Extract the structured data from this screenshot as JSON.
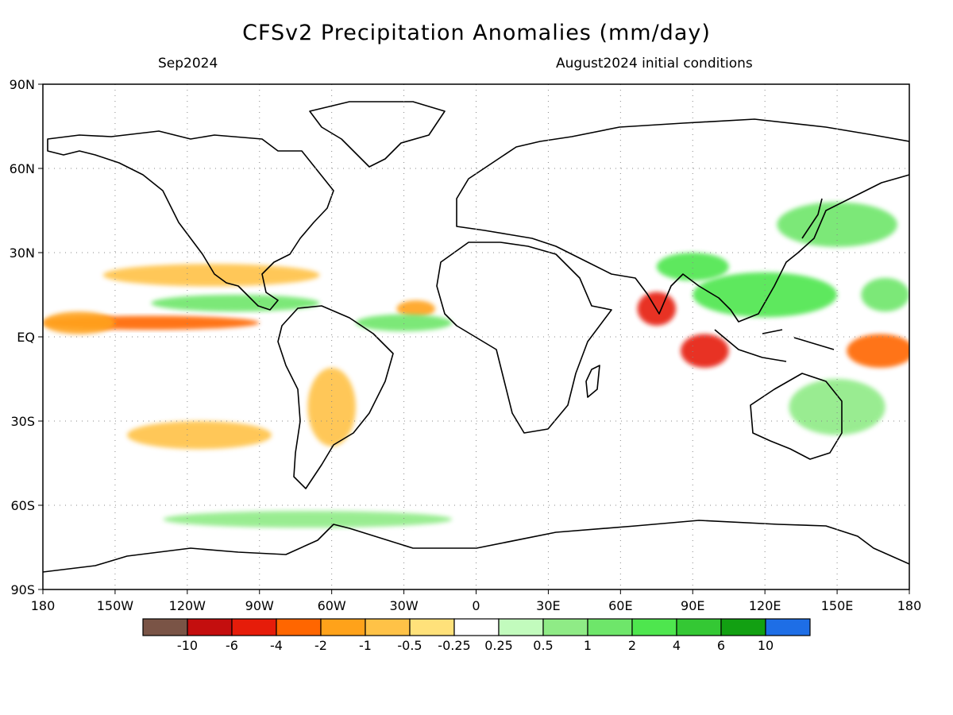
{
  "title": "CFSv2 Precipitation Anomalies (mm/day)",
  "subtitle_left": "Sep2024",
  "subtitle_right": "August2024 initial conditions",
  "map": {
    "lon_ticks": [
      "180",
      "150W",
      "120W",
      "90W",
      "60W",
      "30W",
      "0",
      "30E",
      "60E",
      "90E",
      "120E",
      "150E",
      "180"
    ],
    "lat_ticks": [
      "90N",
      "60N",
      "30N",
      "EQ",
      "30S",
      "60S",
      "90S"
    ],
    "lon_values": [
      -180,
      -150,
      -120,
      -90,
      -60,
      -30,
      0,
      30,
      60,
      90,
      120,
      150,
      180
    ],
    "lat_values": [
      90,
      60,
      30,
      0,
      -30,
      -60,
      -90
    ],
    "grid": "dotted",
    "extent": {
      "lon": [
        -180,
        180
      ],
      "lat": [
        -90,
        90
      ]
    },
    "anomaly_regions": [
      {
        "lon": -135,
        "lat": 5,
        "rx": 45,
        "ry": 2.5,
        "level": -3
      },
      {
        "lon": -165,
        "lat": 5,
        "rx": 15,
        "ry": 4,
        "level": -2
      },
      {
        "lon": 75,
        "lat": 10,
        "rx": 8,
        "ry": 6,
        "level": -4
      },
      {
        "lon": 95,
        "lat": -5,
        "rx": 10,
        "ry": 6,
        "level": -4
      },
      {
        "lon": 168,
        "lat": -5,
        "rx": 14,
        "ry": 6,
        "level": -3
      },
      {
        "lon": -110,
        "lat": 22,
        "rx": 45,
        "ry": 4,
        "level": -1
      },
      {
        "lon": -115,
        "lat": -35,
        "rx": 30,
        "ry": 5,
        "level": -1
      },
      {
        "lon": -60,
        "lat": -25,
        "rx": 10,
        "ry": 14,
        "level": -1
      },
      {
        "lon": -25,
        "lat": 10,
        "rx": 8,
        "ry": 3,
        "level": -2
      },
      {
        "lon": 120,
        "lat": 15,
        "rx": 30,
        "ry": 8,
        "level": 3
      },
      {
        "lon": 90,
        "lat": 25,
        "rx": 15,
        "ry": 5,
        "level": 3
      },
      {
        "lon": -100,
        "lat": 12,
        "rx": 35,
        "ry": 3,
        "level": 2
      },
      {
        "lon": -30,
        "lat": 5,
        "rx": 20,
        "ry": 3,
        "level": 2
      },
      {
        "lon": 150,
        "lat": 40,
        "rx": 25,
        "ry": 8,
        "level": 2
      },
      {
        "lon": -70,
        "lat": -65,
        "rx": 60,
        "ry": 3,
        "level": 1
      },
      {
        "lon": 150,
        "lat": -25,
        "rx": 20,
        "ry": 10,
        "level": 1
      },
      {
        "lon": 170,
        "lat": 15,
        "rx": 10,
        "ry": 6,
        "level": 2
      }
    ]
  },
  "colorbar": {
    "labels": [
      "-10",
      "-6",
      "-4",
      "-2",
      "-1",
      "-0.5",
      "-0.25",
      "0.25",
      "0.5",
      "1",
      "2",
      "4",
      "6",
      "10"
    ],
    "colors": [
      "#7a5446",
      "#c40e0e",
      "#e61c0a",
      "#ff6600",
      "#ffa21a",
      "#ffc247",
      "#ffe17a",
      "#ffffff",
      "#c2fbbd",
      "#8feb86",
      "#6ee66a",
      "#4ee64e",
      "#34c834",
      "#12a012",
      "#1e6ee6"
    ]
  }
}
